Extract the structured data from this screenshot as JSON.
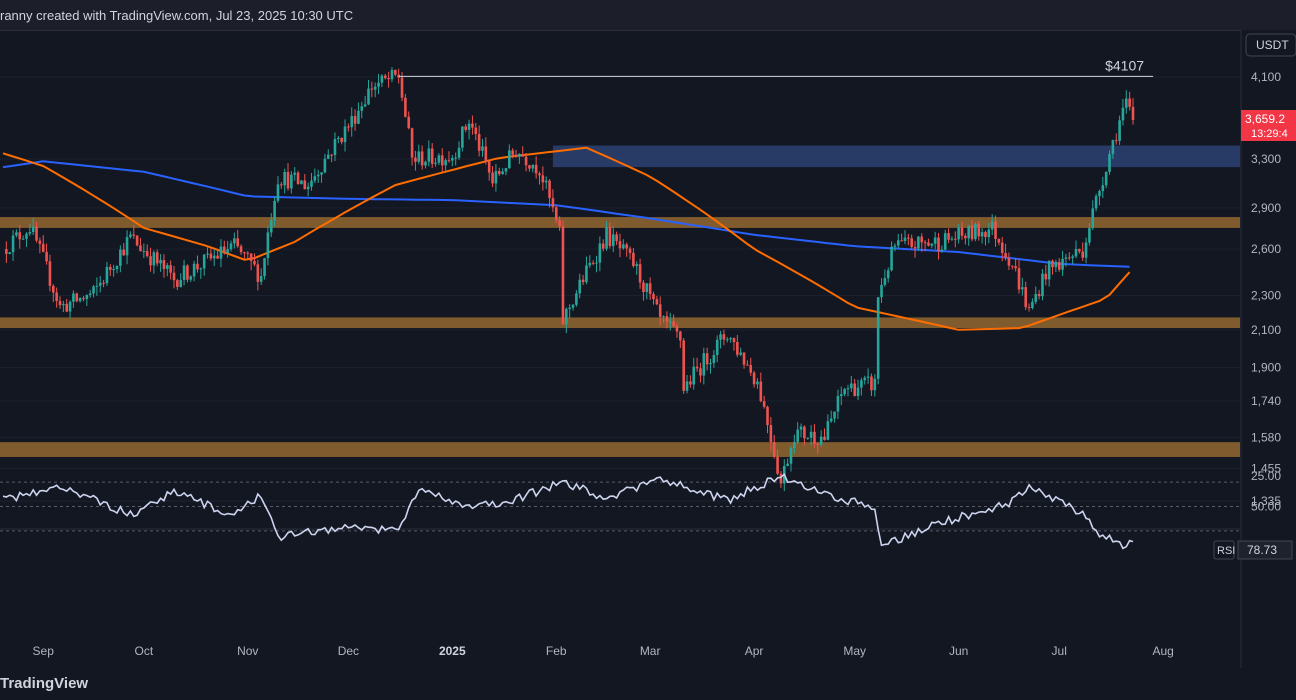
{
  "header": {
    "caption": "ranny created with TradingView.com, Jul 23, 2025 10:30 UTC"
  },
  "footer": {
    "brand": "TradingView"
  },
  "currency_badge": "USDT",
  "price_labels": {
    "last_price": "3,659.2",
    "countdown": "13:29:4",
    "target_label": "$4107"
  },
  "rsi_badge": {
    "label": "RSI",
    "value": "78.73"
  },
  "colors": {
    "up": "#26a69a",
    "down": "#ef5350",
    "ma_blue": "#2962ff",
    "ma_orange": "#ff6d00",
    "resistance_zone": "#2a3f6e",
    "support_zone": "#8a6230",
    "rsi_line": "#ccd4ee"
  },
  "chart_data": {
    "type": "candlestick",
    "symbol_quote": "USDT",
    "price_axis_ticks": [
      4100,
      3300,
      2900,
      2600,
      2300,
      2100,
      1900,
      1740,
      1580,
      1455,
      1335
    ],
    "price_scale": "log",
    "time_axis_ticks": [
      "Sep",
      "Oct",
      "Nov",
      "Dec",
      "2025",
      "Feb",
      "Mar",
      "Apr",
      "May",
      "Jun",
      "Jul",
      "Aug"
    ],
    "date_range": [
      "2024-08-20",
      "2025-07-23"
    ],
    "highlight_level": {
      "value": 4107,
      "label": "$4107",
      "from": "2024-12-16",
      "to": "2025-07-29"
    },
    "zones": [
      {
        "kind": "resistance",
        "low": 3230,
        "high": 3420,
        "from": "2025-01-31"
      },
      {
        "kind": "support",
        "low": 2750,
        "high": 2830
      },
      {
        "kind": "support",
        "low": 2110,
        "high": 2170
      },
      {
        "kind": "support",
        "low": 1500,
        "high": 1560
      }
    ],
    "moving_averages": [
      {
        "color": "blue",
        "points": [
          [
            "2024-08-20",
            3230
          ],
          [
            "2024-09-01",
            3280
          ],
          [
            "2024-10-01",
            3190
          ],
          [
            "2024-11-01",
            2990
          ],
          [
            "2024-12-01",
            2970
          ],
          [
            "2025-01-01",
            2960
          ],
          [
            "2025-02-01",
            2920
          ],
          [
            "2025-03-01",
            2820
          ],
          [
            "2025-04-01",
            2700
          ],
          [
            "2025-05-01",
            2620
          ],
          [
            "2025-06-01",
            2580
          ],
          [
            "2025-07-01",
            2500
          ],
          [
            "2025-07-23",
            2480
          ]
        ]
      },
      {
        "color": "orange",
        "points": [
          [
            "2024-08-20",
            3350
          ],
          [
            "2024-09-01",
            3240
          ],
          [
            "2024-10-01",
            2750
          ],
          [
            "2024-10-20",
            2620
          ],
          [
            "2024-11-01",
            2520
          ],
          [
            "2024-11-15",
            2650
          ],
          [
            "2024-12-15",
            3080
          ],
          [
            "2025-01-15",
            3310
          ],
          [
            "2025-02-10",
            3400
          ],
          [
            "2025-03-01",
            3150
          ],
          [
            "2025-04-01",
            2600
          ],
          [
            "2025-05-01",
            2230
          ],
          [
            "2025-06-01",
            2100
          ],
          [
            "2025-06-20",
            2110
          ],
          [
            "2025-07-15",
            2280
          ],
          [
            "2025-07-23",
            2470
          ]
        ]
      }
    ],
    "price_path": [
      [
        "2024-08-20",
        2600
      ],
      [
        "2024-08-28",
        2760
      ],
      [
        "2024-09-06",
        2230
      ],
      [
        "2024-09-16",
        2310
      ],
      [
        "2024-09-27",
        2680
      ],
      [
        "2024-10-10",
        2400
      ],
      [
        "2024-10-28",
        2620
      ],
      [
        "2024-11-05",
        2420
      ],
      [
        "2024-11-10",
        3150
      ],
      [
        "2024-11-19",
        3080
      ],
      [
        "2024-12-02",
        3650
      ],
      [
        "2024-12-08",
        4000
      ],
      [
        "2024-12-16",
        4107
      ],
      [
        "2024-12-20",
        3300
      ],
      [
        "2025-01-01",
        3330
      ],
      [
        "2025-01-06",
        3650
      ],
      [
        "2025-01-13",
        3100
      ],
      [
        "2025-01-20",
        3380
      ],
      [
        "2025-01-27",
        3220
      ],
      [
        "2025-02-02",
        2700
      ],
      [
        "2025-02-03",
        2150
      ],
      [
        "2025-02-16",
        2700
      ],
      [
        "2025-02-24",
        2500
      ],
      [
        "2025-03-04",
        2150
      ],
      [
        "2025-03-10",
        2050
      ],
      [
        "2025-03-11",
        1800
      ],
      [
        "2025-03-24",
        2080
      ],
      [
        "2025-04-02",
        1830
      ],
      [
        "2025-04-09",
        1400
      ],
      [
        "2025-04-13",
        1600
      ],
      [
        "2025-04-22",
        1580
      ],
      [
        "2025-04-28",
        1800
      ],
      [
        "2025-05-07",
        1820
      ],
      [
        "2025-05-08",
        2300
      ],
      [
        "2025-05-13",
        2620
      ],
      [
        "2025-05-26",
        2650
      ],
      [
        "2025-06-11",
        2750
      ],
      [
        "2025-06-17",
        2500
      ],
      [
        "2025-06-22",
        2200
      ],
      [
        "2025-06-27",
        2450
      ],
      [
        "2025-07-08",
        2600
      ],
      [
        "2025-07-12",
        2950
      ],
      [
        "2025-07-16",
        3350
      ],
      [
        "2025-07-20",
        3750
      ],
      [
        "2025-07-21",
        3800
      ],
      [
        "2025-07-23",
        3659
      ]
    ],
    "last_close": 3659.2,
    "rsi": {
      "ticks": [
        50.0,
        25.0
      ],
      "guides": [
        70,
        50,
        30
      ],
      "last": 78.73,
      "path": [
        [
          "2024-08-20",
          45
        ],
        [
          "2024-09-06",
          32
        ],
        [
          "2024-09-27",
          57
        ],
        [
          "2024-10-10",
          38
        ],
        [
          "2024-10-28",
          58
        ],
        [
          "2024-11-05",
          40
        ],
        [
          "2024-11-10",
          75
        ],
        [
          "2024-12-01",
          67
        ],
        [
          "2024-12-16",
          70
        ],
        [
          "2024-12-22",
          34
        ],
        [
          "2025-01-06",
          52
        ],
        [
          "2025-01-20",
          44
        ],
        [
          "2025-02-03",
          30
        ],
        [
          "2025-02-16",
          43
        ],
        [
          "2025-03-04",
          28
        ],
        [
          "2025-03-24",
          45
        ],
        [
          "2025-04-09",
          25
        ],
        [
          "2025-04-28",
          45
        ],
        [
          "2025-05-07",
          50
        ],
        [
          "2025-05-09",
          82
        ],
        [
          "2025-05-26",
          64
        ],
        [
          "2025-06-17",
          46
        ],
        [
          "2025-06-22",
          33
        ],
        [
          "2025-07-08",
          56
        ],
        [
          "2025-07-12",
          70
        ],
        [
          "2025-07-21",
          84
        ],
        [
          "2025-07-23",
          78.73
        ]
      ]
    }
  }
}
